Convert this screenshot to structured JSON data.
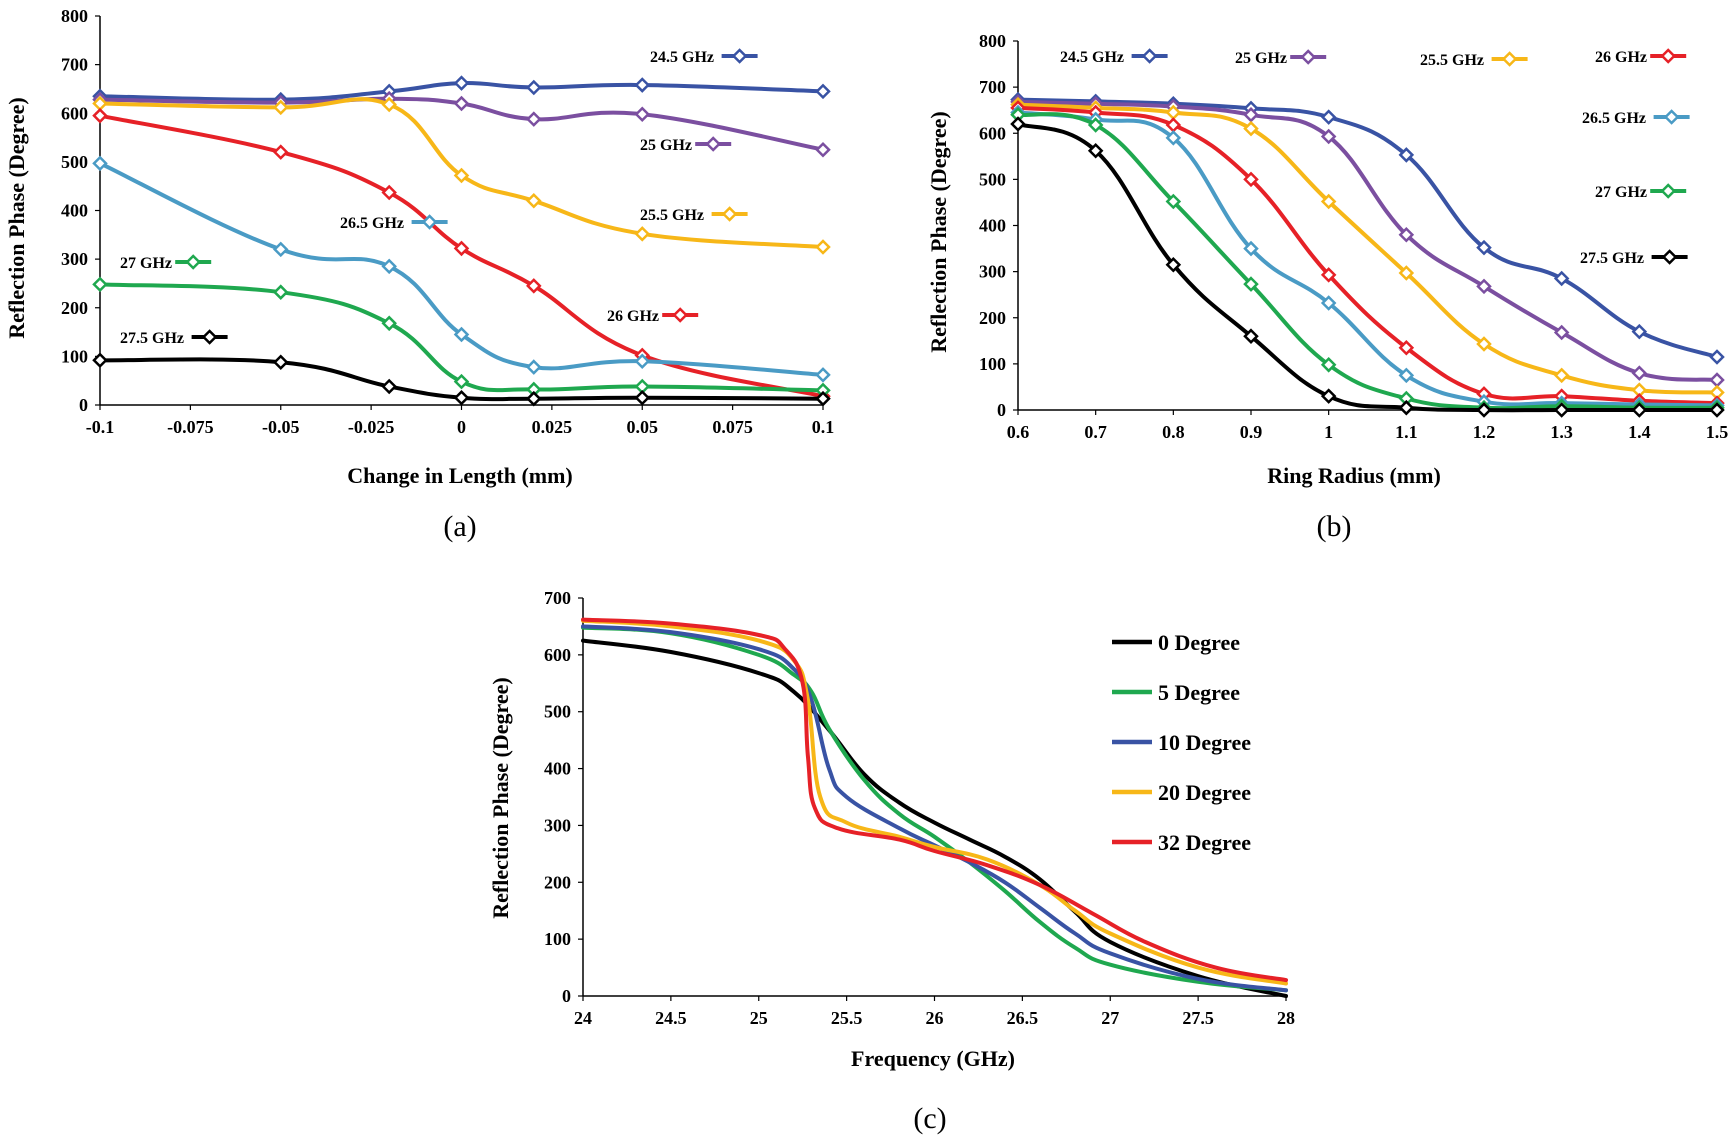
{
  "chart_data": [
    {
      "id": "a",
      "type": "line",
      "caption": "(a)",
      "xlabel": "Change in Length (mm)",
      "ylabel": "Reflection Phase (Degree)",
      "xlim": [
        -0.1,
        0.1
      ],
      "ylim": [
        0,
        800
      ],
      "xticks": [
        -0.1,
        -0.075,
        -0.05,
        -0.025,
        0,
        0.025,
        0.05,
        0.075,
        0.1
      ],
      "xtick_labels": [
        "-0.1",
        "-0.075",
        "-0.05",
        "-0.025",
        "0",
        "0.025",
        "0.05",
        "0.075",
        "0.1"
      ],
      "yticks": [
        0,
        100,
        200,
        300,
        400,
        500,
        600,
        700,
        800
      ],
      "ytick_labels": [
        "0",
        "100",
        "200",
        "300",
        "400",
        "500",
        "600",
        "700",
        "800"
      ],
      "x": [
        -0.1,
        -0.05,
        -0.02,
        0,
        0.02,
        0.05,
        0.1
      ],
      "series": [
        {
          "name": "24.5 GHz",
          "color": "#3953a4",
          "values": [
            635,
            628,
            645,
            662,
            653,
            658,
            645
          ]
        },
        {
          "name": "25 GHz",
          "color": "#7b4fa0",
          "values": [
            628,
            622,
            630,
            620,
            588,
            598,
            525
          ]
        },
        {
          "name": "25.5 GHz",
          "color": "#f7b718",
          "values": [
            620,
            612,
            618,
            472,
            420,
            352,
            325
          ]
        },
        {
          "name": "26 GHz",
          "color": "#e62127",
          "values": [
            595,
            520,
            437,
            322,
            245,
            102,
            18
          ]
        },
        {
          "name": "26.5 GHz",
          "color": "#4a9bc5",
          "values": [
            497,
            320,
            285,
            145,
            78,
            90,
            62
          ]
        },
        {
          "name": "27 GHz",
          "color": "#1fa84f",
          "values": [
            248,
            232,
            168,
            48,
            32,
            38,
            30
          ]
        },
        {
          "name": "27.5 GHz",
          "color": "#000000",
          "values": [
            92,
            88,
            38,
            15,
            13,
            15,
            13
          ]
        }
      ]
    },
    {
      "id": "b",
      "type": "line",
      "caption": "(b)",
      "xlabel": "Ring Radius (mm)",
      "ylabel": "Reflection Phase (Degree)",
      "xlim": [
        0.6,
        1.5
      ],
      "ylim": [
        0,
        800
      ],
      "xticks": [
        0.6,
        0.7,
        0.8,
        0.9,
        1.0,
        1.1,
        1.2,
        1.3,
        1.4,
        1.5
      ],
      "xtick_labels": [
        "0.6",
        "0.7",
        "0.8",
        "0.9",
        "1",
        "1.1",
        "1.2",
        "1.3",
        "1.4",
        "1.5"
      ],
      "yticks": [
        0,
        100,
        200,
        300,
        400,
        500,
        600,
        700,
        800
      ],
      "ytick_labels": [
        "0",
        "100",
        "200",
        "300",
        "400",
        "500",
        "600",
        "700",
        "800"
      ],
      "x": [
        0.6,
        0.7,
        0.8,
        0.9,
        1.0,
        1.1,
        1.2,
        1.3,
        1.4,
        1.5
      ],
      "series": [
        {
          "name": "24.5 GHz",
          "color": "#3953a4",
          "values": [
            673,
            669,
            664,
            654,
            635,
            553,
            352,
            285,
            170,
            115
          ]
        },
        {
          "name": "25 GHz",
          "color": "#7b4fa0",
          "values": [
            668,
            664,
            658,
            640,
            593,
            380,
            268,
            168,
            80,
            65
          ]
        },
        {
          "name": "25.5 GHz",
          "color": "#f7b718",
          "values": [
            662,
            655,
            645,
            610,
            452,
            297,
            143,
            75,
            43,
            38
          ]
        },
        {
          "name": "26 GHz",
          "color": "#e62127",
          "values": [
            655,
            645,
            618,
            500,
            293,
            135,
            35,
            30,
            20,
            15
          ]
        },
        {
          "name": "26.5 GHz",
          "color": "#4a9bc5",
          "values": [
            645,
            630,
            590,
            350,
            232,
            75,
            18,
            15,
            12,
            10
          ]
        },
        {
          "name": "27 GHz",
          "color": "#1fa84f",
          "values": [
            640,
            618,
            452,
            273,
            98,
            25,
            5,
            8,
            5,
            5
          ]
        },
        {
          "name": "27.5 GHz",
          "color": "#000000",
          "values": [
            620,
            562,
            315,
            160,
            30,
            5,
            0,
            0,
            0,
            0
          ]
        }
      ]
    },
    {
      "id": "c",
      "type": "line",
      "caption": "(c)",
      "xlabel": "Frequency (GHz)",
      "ylabel": "Reflection Phase (Degree)",
      "xlim": [
        24,
        28
      ],
      "ylim": [
        0,
        700
      ],
      "xticks": [
        24,
        24.5,
        25,
        25.5,
        26,
        26.5,
        27,
        27.5,
        28
      ],
      "xtick_labels": [
        "24",
        "24.5",
        "25",
        "25.5",
        "26",
        "26.5",
        "27",
        "27.5",
        "28"
      ],
      "yticks": [
        0,
        100,
        200,
        300,
        400,
        500,
        600,
        700
      ],
      "ytick_labels": [
        "0",
        "100",
        "200",
        "300",
        "400",
        "500",
        "600",
        "700"
      ],
      "series": [
        {
          "name": "0 Degree",
          "color": "#000000",
          "x": [
            24,
            24.5,
            25,
            25.2,
            25.4,
            25.6,
            25.8,
            26,
            26.2,
            26.4,
            26.6,
            26.8,
            27,
            27.5,
            28
          ],
          "values": [
            625,
            605,
            568,
            535,
            468,
            390,
            340,
            305,
            275,
            245,
            205,
            148,
            95,
            35,
            0
          ]
        },
        {
          "name": "5 Degree",
          "color": "#1fa84f",
          "x": [
            24,
            24.5,
            25,
            25.2,
            25.3,
            25.4,
            25.6,
            25.8,
            26,
            26.2,
            26.4,
            26.6,
            26.8,
            27,
            27.5,
            28
          ],
          "values": [
            648,
            638,
            600,
            565,
            535,
            470,
            380,
            320,
            280,
            235,
            185,
            130,
            85,
            55,
            25,
            10
          ]
        },
        {
          "name": "10 Degree",
          "color": "#3953a4",
          "x": [
            24,
            24.5,
            25,
            25.2,
            25.3,
            25.4,
            25.5,
            25.8,
            26,
            26.2,
            26.4,
            26.6,
            26.8,
            27,
            27.5,
            28
          ],
          "values": [
            650,
            640,
            610,
            575,
            520,
            400,
            350,
            295,
            265,
            235,
            200,
            155,
            110,
            75,
            30,
            10
          ]
        },
        {
          "name": "20 Degree",
          "color": "#f7b718",
          "x": [
            24,
            24.5,
            25,
            25.2,
            25.28,
            25.35,
            25.5,
            25.8,
            26,
            26.3,
            26.6,
            26.8,
            27,
            27.5,
            28
          ],
          "values": [
            660,
            650,
            625,
            590,
            520,
            350,
            305,
            280,
            262,
            240,
            195,
            150,
            110,
            50,
            22
          ]
        },
        {
          "name": "32 Degree",
          "color": "#e62127",
          "x": [
            24,
            24.5,
            25,
            25.15,
            25.25,
            25.28,
            25.32,
            25.45,
            25.8,
            26,
            26.3,
            26.6,
            26.9,
            27.2,
            27.6,
            28
          ],
          "values": [
            662,
            655,
            635,
            610,
            550,
            420,
            330,
            295,
            275,
            255,
            230,
            195,
            145,
            95,
            50,
            28
          ]
        }
      ]
    }
  ]
}
